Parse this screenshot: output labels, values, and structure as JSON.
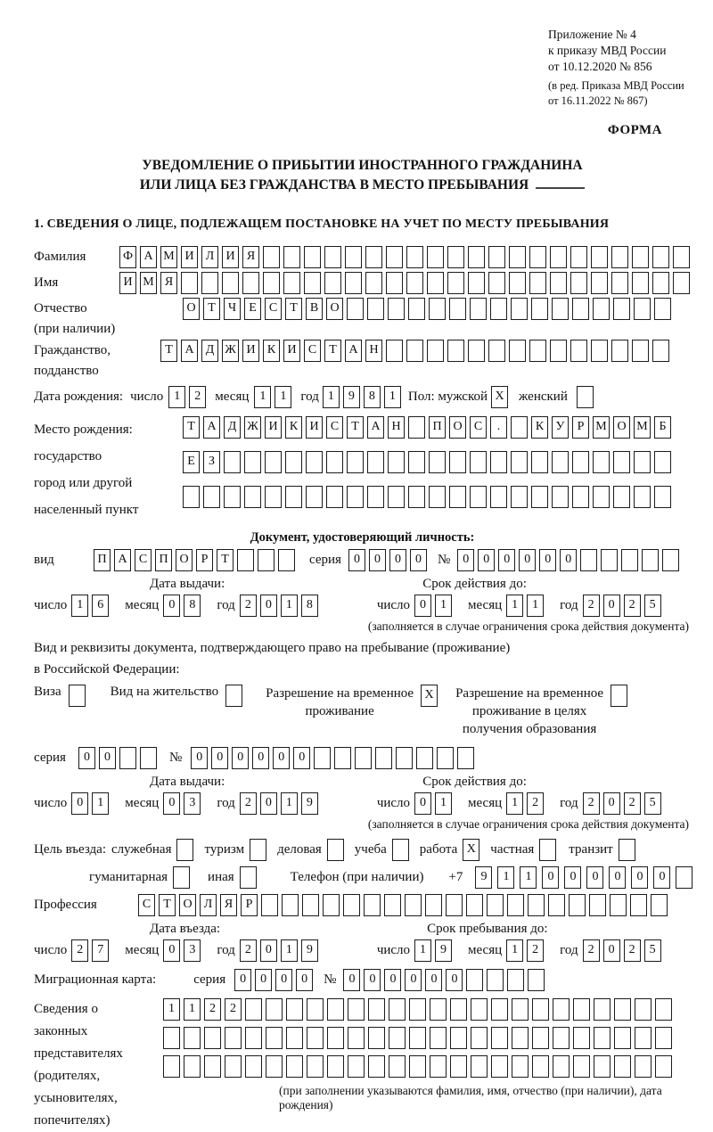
{
  "header": {
    "lines": [
      "Приложение № 4",
      "к приказу МВД России",
      "от 10.12.2020 № 856"
    ],
    "amendment": [
      "(в ред. Приказа МВД России",
      "от 16.11.2022 № 867)"
    ],
    "form_label": "ФОРМА"
  },
  "title": {
    "line1": "УВЕДОМЛЕНИЕ О ПРИБЫТИИ ИНОСТРАННОГО ГРАЖДАНИНА",
    "line2": "ИЛИ ЛИЦА БЕЗ ГРАЖДАНСТВА В МЕСТО ПРЕБЫВАНИЯ"
  },
  "section1_heading": "1. СВЕДЕНИЯ О ЛИЦЕ, ПОДЛЕЖАЩЕМ ПОСТАНОВКЕ НА УЧЕТ ПО МЕСТУ ПРЕБЫВАНИЯ",
  "common": {
    "day_label": "число",
    "month_label": "месяц",
    "year_label": "год",
    "series_label": "серия",
    "number_label": "№",
    "issue_date_label": "Дата выдачи:",
    "validity_label": "Срок действия до:",
    "validity_note": "(заполняется в случае ограничения срока действия документа)"
  },
  "person": {
    "surname": {
      "label": "Фамилия",
      "cells": [
        "Ф",
        "А",
        "М",
        "И",
        "Л",
        "И",
        "Я",
        "",
        "",
        "",
        "",
        "",
        "",
        "",
        "",
        "",
        "",
        "",
        "",
        "",
        "",
        "",
        "",
        "",
        "",
        "",
        "",
        ""
      ]
    },
    "given_name": {
      "label": "Имя",
      "cells": [
        "И",
        "М",
        "Я",
        "",
        "",
        "",
        "",
        "",
        "",
        "",
        "",
        "",
        "",
        "",
        "",
        "",
        "",
        "",
        "",
        "",
        "",
        "",
        "",
        "",
        "",
        "",
        "",
        ""
      ]
    },
    "patronymic": {
      "label": "Отчество",
      "sublabel": "(при наличии)",
      "cells": [
        "О",
        "Т",
        "Ч",
        "Е",
        "С",
        "Т",
        "В",
        "О",
        "",
        "",
        "",
        "",
        "",
        "",
        "",
        "",
        "",
        "",
        "",
        "",
        "",
        "",
        "",
        ""
      ]
    },
    "citizenship": {
      "label": "Гражданство,",
      "sublabel": "подданство",
      "cells": [
        "Т",
        "А",
        "Д",
        "Ж",
        "И",
        "К",
        "И",
        "С",
        "Т",
        "А",
        "Н",
        "",
        "",
        "",
        "",
        "",
        "",
        "",
        "",
        "",
        "",
        "",
        "",
        "",
        ""
      ]
    },
    "birth": {
      "label": "Дата рождения:",
      "day": [
        "1",
        "2"
      ],
      "month": [
        "1",
        "1"
      ],
      "year": [
        "1",
        "9",
        "8",
        "1"
      ],
      "sex_male_label": "Пол: мужской",
      "sex_male": "X",
      "sex_female_label": "женский",
      "sex_female": ""
    },
    "birth_place": {
      "label_lines": [
        "Место рождения:",
        "государство",
        "город или другой",
        "населенный пункт"
      ],
      "row1": [
        "Т",
        "А",
        "Д",
        "Ж",
        "И",
        "К",
        "И",
        "С",
        "Т",
        "А",
        "Н",
        "",
        "П",
        "О",
        "С",
        ".",
        "",
        "К",
        "У",
        "Р",
        "М",
        "О",
        "М",
        "Б"
      ],
      "row2": [
        "Е",
        "З",
        "",
        "",
        "",
        "",
        "",
        "",
        "",
        "",
        "",
        "",
        "",
        "",
        "",
        "",
        "",
        "",
        "",
        "",
        "",
        "",
        "",
        ""
      ],
      "row3": [
        "",
        "",
        "",
        "",
        "",
        "",
        "",
        "",
        "",
        "",
        "",
        "",
        "",
        "",
        "",
        "",
        "",
        "",
        "",
        "",
        "",
        "",
        "",
        ""
      ]
    }
  },
  "identity_doc": {
    "heading": "Документ, удостоверяющий личность:",
    "type_label": "вид",
    "type_cells": [
      "П",
      "А",
      "С",
      "П",
      "О",
      "Р",
      "Т",
      "",
      "",
      ""
    ],
    "series_cells": [
      "0",
      "0",
      "0",
      "0"
    ],
    "number_cells": [
      "0",
      "0",
      "0",
      "0",
      "0",
      "0",
      "",
      "",
      "",
      "",
      ""
    ],
    "issue": {
      "day": [
        "1",
        "6"
      ],
      "month": [
        "0",
        "8"
      ],
      "year": [
        "2",
        "0",
        "1",
        "8"
      ]
    },
    "validity": {
      "day": [
        "0",
        "1"
      ],
      "month": [
        "1",
        "1"
      ],
      "year": [
        "2",
        "0",
        "2",
        "5"
      ]
    }
  },
  "residence": {
    "intro1": "Вид и реквизиты документа, подтверждающего право на пребывание (проживание)",
    "intro2": "в Российской Федерации:",
    "visa": {
      "label": "Виза",
      "value": ""
    },
    "residence_permit": {
      "label": "Вид на жительство",
      "value": ""
    },
    "temp_permit": {
      "line1": "Разрешение на временное",
      "line2": "проживание",
      "value": "X"
    },
    "edu_permit": {
      "line1": "Разрешение на временное",
      "line2": "проживание в целях",
      "line3": "получения образования",
      "value": ""
    },
    "series_cells": [
      "0",
      "0",
      "",
      ""
    ],
    "number_cells": [
      "0",
      "0",
      "0",
      "0",
      "0",
      "0",
      "",
      "",
      "",
      "",
      "",
      "",
      "",
      ""
    ],
    "issue": {
      "day": [
        "0",
        "1"
      ],
      "month": [
        "0",
        "3"
      ],
      "year": [
        "2",
        "0",
        "1",
        "9"
      ]
    },
    "validity": {
      "day": [
        "0",
        "1"
      ],
      "month": [
        "1",
        "2"
      ],
      "year": [
        "2",
        "0",
        "2",
        "5"
      ]
    }
  },
  "purpose": {
    "label": "Цель въезда:",
    "official": {
      "label": "служебная",
      "value": ""
    },
    "tourism": {
      "label": "туризм",
      "value": ""
    },
    "business": {
      "label": "деловая",
      "value": ""
    },
    "study": {
      "label": "учеба",
      "value": ""
    },
    "work": {
      "label": "работа",
      "value": "X"
    },
    "private": {
      "label": "частная",
      "value": ""
    },
    "transit": {
      "label": "транзит",
      "value": ""
    },
    "humanitarian": {
      "label": "гуманитарная",
      "value": ""
    },
    "other": {
      "label": "иная",
      "value": ""
    }
  },
  "phone": {
    "label": "Телефон (при наличии)",
    "prefix": "+7",
    "cells": [
      "9",
      "1",
      "1",
      "0",
      "0",
      "0",
      "0",
      "0",
      "0",
      ""
    ]
  },
  "profession": {
    "label": "Профессия",
    "cells": [
      "С",
      "Т",
      "О",
      "Л",
      "Я",
      "Р",
      "",
      "",
      "",
      "",
      "",
      "",
      "",
      "",
      "",
      "",
      "",
      "",
      "",
      "",
      "",
      "",
      "",
      "",
      "",
      ""
    ]
  },
  "entry": {
    "date_label": "Дата въезда:",
    "stay_label": "Срок пребывания до:",
    "date": {
      "day": [
        "2",
        "7"
      ],
      "month": [
        "0",
        "3"
      ],
      "year": [
        "2",
        "0",
        "1",
        "9"
      ]
    },
    "stay": {
      "day": [
        "1",
        "9"
      ],
      "month": [
        "1",
        "2"
      ],
      "year": [
        "2",
        "0",
        "2",
        "5"
      ]
    }
  },
  "migration_card": {
    "label": "Миграционная карта:",
    "series_cells": [
      "0",
      "0",
      "0",
      "0"
    ],
    "number_cells": [
      "0",
      "0",
      "0",
      "0",
      "0",
      "0",
      "",
      "",
      "",
      ""
    ]
  },
  "representatives": {
    "label_lines": [
      "Сведения о",
      "законных",
      "представителях",
      "(родителях,",
      "усыновителях,",
      "попечителях)"
    ],
    "row1": [
      "1",
      "1",
      "2",
      "2",
      "",
      "",
      "",
      "",
      "",
      "",
      "",
      "",
      "",
      "",
      "",
      "",
      "",
      "",
      "",
      "",
      "",
      "",
      "",
      "",
      ""
    ],
    "row2": [
      "",
      "",
      "",
      "",
      "",
      "",
      "",
      "",
      "",
      "",
      "",
      "",
      "",
      "",
      "",
      "",
      "",
      "",
      "",
      "",
      "",
      "",
      "",
      "",
      ""
    ],
    "row3": [
      "",
      "",
      "",
      "",
      "",
      "",
      "",
      "",
      "",
      "",
      "",
      "",
      "",
      "",
      "",
      "",
      "",
      "",
      "",
      "",
      "",
      "",
      "",
      "",
      ""
    ],
    "note": "(при заполнении указываются фамилия, имя, отчество (при наличии), дата рождения)"
  }
}
